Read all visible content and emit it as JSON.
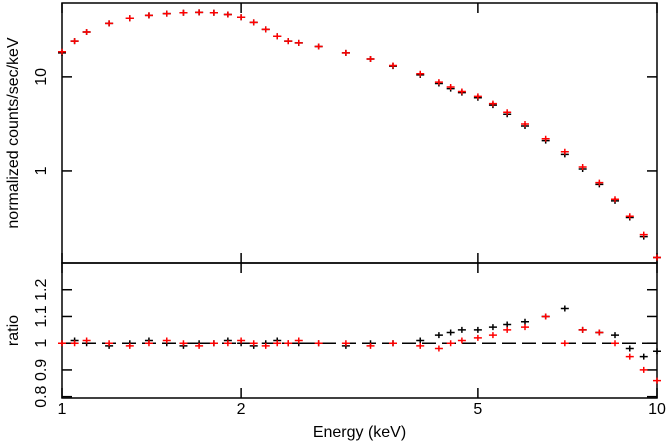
{
  "chart_data": [
    {
      "type": "scatter",
      "ylabel": "normalized counts/sec/keV",
      "xlog": true,
      "ylog": true,
      "xlim": [
        1,
        10
      ],
      "ylim": [
        0.105,
        61
      ],
      "yticks": [
        1,
        10
      ],
      "x": [
        1.0,
        1.05,
        1.1,
        1.2,
        1.3,
        1.4,
        1.5,
        1.6,
        1.7,
        1.8,
        1.9,
        2.0,
        2.1,
        2.2,
        2.3,
        2.4,
        2.5,
        2.7,
        3.0,
        3.3,
        3.6,
        4.0,
        4.3,
        4.5,
        4.7,
        5.0,
        5.3,
        5.6,
        6.0,
        6.5,
        7.0,
        7.5,
        8.0,
        8.5,
        9.0,
        9.5,
        10.0
      ],
      "series": [
        {
          "color": "#000000",
          "values": [
            18,
            24,
            30,
            37,
            42,
            45,
            47,
            48,
            48.5,
            48,
            46,
            43,
            38,
            32,
            27,
            24,
            23,
            21,
            18,
            15.5,
            13,
            10.5,
            8.5,
            7.5,
            6.8,
            6.0,
            5.0,
            4.0,
            3.0,
            2.1,
            1.5,
            1.05,
            0.72,
            0.48,
            0.32,
            0.2,
            0.12
          ]
        },
        {
          "color": "#ff0000",
          "values": [
            18.5,
            24,
            30,
            37,
            42,
            45,
            47,
            48,
            48.5,
            48,
            46,
            43,
            38,
            32,
            27,
            24,
            23,
            21,
            18,
            15.5,
            13.2,
            10.8,
            8.8,
            7.8,
            7.0,
            6.2,
            5.2,
            4.2,
            3.15,
            2.2,
            1.6,
            1.1,
            0.75,
            0.5,
            0.33,
            0.21,
            0.12
          ]
        }
      ]
    },
    {
      "type": "scatter",
      "xlabel": "Energy (keV)",
      "ylabel": "ratio",
      "xlog": true,
      "ylog": false,
      "xlim": [
        1,
        10
      ],
      "ylim": [
        0.795,
        1.3
      ],
      "xticks": [
        1,
        2,
        5,
        10
      ],
      "yticks": [
        0.8,
        0.9,
        1,
        1.1,
        1.2
      ],
      "refline": 1,
      "x": [
        1.0,
        1.05,
        1.1,
        1.2,
        1.3,
        1.4,
        1.5,
        1.6,
        1.7,
        1.8,
        1.9,
        2.0,
        2.1,
        2.2,
        2.3,
        2.4,
        2.5,
        2.7,
        3.0,
        3.3,
        3.6,
        4.0,
        4.3,
        4.5,
        4.7,
        5.0,
        5.3,
        5.6,
        6.0,
        6.5,
        7.0,
        7.5,
        8.0,
        8.5,
        9.0,
        9.5,
        10.0
      ],
      "series": [
        {
          "color": "#000000",
          "values": [
            1.0,
            1.01,
            1.0,
            0.99,
            1.0,
            1.01,
            1.0,
            0.99,
            1.0,
            1.0,
            1.01,
            1.0,
            0.99,
            1.0,
            1.01,
            1.0,
            1.0,
            1.0,
            0.99,
            1.0,
            1.0,
            1.01,
            1.03,
            1.04,
            1.05,
            1.05,
            1.06,
            1.07,
            1.08,
            1.1,
            1.13,
            1.05,
            1.04,
            1.03,
            0.98,
            0.95,
            0.97
          ]
        },
        {
          "color": "#ff0000",
          "values": [
            1.0,
            1.0,
            1.01,
            1.0,
            0.99,
            1.0,
            1.01,
            1.0,
            0.99,
            1.0,
            1.0,
            1.01,
            1.0,
            0.99,
            1.0,
            1.0,
            1.01,
            1.0,
            1.0,
            0.99,
            1.0,
            0.99,
            0.98,
            1.0,
            1.01,
            1.02,
            1.03,
            1.05,
            1.06,
            1.1,
            1.0,
            1.05,
            1.04,
            1.0,
            0.95,
            0.9,
            0.86
          ]
        }
      ]
    }
  ]
}
